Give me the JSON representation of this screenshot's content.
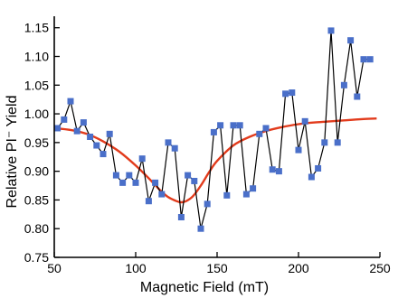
{
  "chart_data": {
    "type": "line",
    "title": "",
    "xlabel": "Magnetic Field (mT)",
    "ylabel": "Relative PI⁻ Yield",
    "xlim": [
      50,
      250
    ],
    "ylim": [
      0.75,
      1.17
    ],
    "xticks": [
      50,
      100,
      150,
      200,
      250
    ],
    "yticks": [
      0.75,
      0.8,
      0.85,
      0.9,
      0.95,
      1.0,
      1.05,
      1.1,
      1.15
    ],
    "xtick_labels": [
      "50",
      "100",
      "150",
      "200",
      "250"
    ],
    "ytick_labels": [
      "0.75",
      "0.80",
      "0.85",
      "0.90",
      "0.95",
      "1.00",
      "1.05",
      "1.10",
      "1.15"
    ],
    "grid": false,
    "series": [
      {
        "style": "line-with-square-markers",
        "line_color": "#000000",
        "marker_color": "#4a6fc9",
        "x": [
          52,
          56,
          60,
          64,
          68,
          72,
          76,
          80,
          84,
          88,
          92,
          96,
          100,
          104,
          108,
          112,
          116,
          120,
          124,
          128,
          132,
          136,
          140,
          144,
          148,
          152,
          156,
          160,
          164,
          168,
          172,
          176,
          180,
          184,
          188,
          192,
          196,
          200,
          204,
          208,
          212,
          216,
          220,
          224,
          228,
          232,
          236,
          240,
          244
        ],
        "y": [
          0.975,
          0.99,
          1.022,
          0.97,
          0.985,
          0.96,
          0.945,
          0.93,
          0.965,
          0.893,
          0.88,
          0.893,
          0.88,
          0.922,
          0.848,
          0.88,
          0.86,
          0.95,
          0.94,
          0.82,
          0.893,
          0.883,
          0.8,
          0.843,
          0.968,
          0.98,
          0.858,
          0.98,
          0.98,
          0.86,
          0.87,
          0.965,
          0.975,
          0.903,
          0.9,
          1.035,
          1.037,
          0.937,
          0.987,
          0.89,
          0.905,
          0.95,
          1.145,
          0.95,
          1.05,
          1.128,
          1.03,
          1.095,
          1.095
        ]
      },
      {
        "style": "fit-curve",
        "line_color": "#e23b1c",
        "x": [
          50,
          60,
          70,
          80,
          90,
          100,
          110,
          115,
          120,
          125,
          128,
          131,
          135,
          140,
          145,
          150,
          160,
          170,
          180,
          190,
          200,
          210,
          220,
          230,
          240,
          248
        ],
        "y": [
          0.975,
          0.972,
          0.965,
          0.952,
          0.934,
          0.91,
          0.882,
          0.867,
          0.855,
          0.848,
          0.846,
          0.848,
          0.856,
          0.875,
          0.898,
          0.918,
          0.945,
          0.96,
          0.97,
          0.977,
          0.982,
          0.985,
          0.987,
          0.989,
          0.991,
          0.992
        ]
      }
    ]
  }
}
